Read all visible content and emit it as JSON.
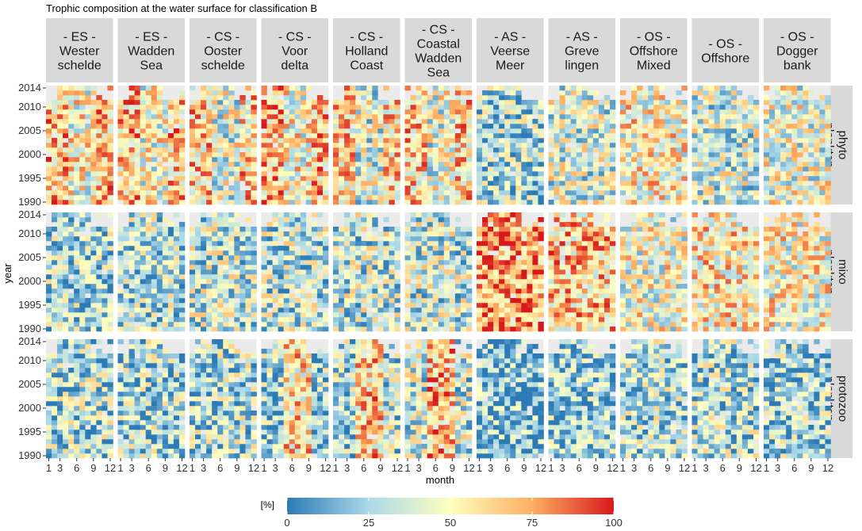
{
  "chart_data": {
    "type": "heatmap",
    "title": "Trophic composition at the water surface for classification B",
    "xlabel": "month",
    "ylabel": "year",
    "x_ticks": [
      1,
      3,
      6,
      9,
      12
    ],
    "x_tick_labels": [
      "1",
      "3",
      "6",
      "9",
      "12"
    ],
    "y_ticks": [
      1990,
      1995,
      2000,
      2005,
      2010,
      2014
    ],
    "y_tick_labels": [
      "1990",
      "1995",
      "2000",
      "2005",
      "2010",
      "2014"
    ],
    "xlim": [
      1,
      12
    ],
    "ylim": [
      1990,
      2014
    ],
    "columns": [
      {
        "line1": "- ES -",
        "line2": "Wester",
        "line3": "schelde"
      },
      {
        "line1": "- ES -",
        "line2": "Wadden",
        "line3": "Sea"
      },
      {
        "line1": "- CS -",
        "line2": "Ooster",
        "line3": "schelde"
      },
      {
        "line1": "- CS -",
        "line2": "Voor",
        "line3": "delta"
      },
      {
        "line1": "- CS -",
        "line2": "Holland",
        "line3": "Coast"
      },
      {
        "line1": "- CS -",
        "line2": "Coastal",
        "line3": "Wadden",
        "line4": "Sea"
      },
      {
        "line1": "- AS -",
        "line2": "Veerse",
        "line3": "Meer"
      },
      {
        "line1": "- AS -",
        "line2": "Greve",
        "line3": "lingen"
      },
      {
        "line1": "- OS -",
        "line2": "Offshore",
        "line3": "Mixed"
      },
      {
        "line1": "- OS -",
        "line2": "Offshore",
        "line3": ""
      },
      {
        "line1": "- OS -",
        "line2": "Dogger",
        "line3": "bank"
      }
    ],
    "rows": [
      {
        "line1": "phyto",
        "line2": "plankton"
      },
      {
        "line1": "mixo",
        "line2": "plankton"
      },
      {
        "line1": "protozoo",
        "line2": "plankton"
      }
    ],
    "approx_mean_percent": [
      [
        62,
        60,
        55,
        62,
        52,
        55,
        28,
        40,
        52,
        38,
        45
      ],
      [
        28,
        30,
        35,
        33,
        35,
        35,
        78,
        65,
        48,
        55,
        50
      ],
      [
        30,
        28,
        30,
        35,
        40,
        45,
        18,
        22,
        30,
        30,
        25
      ]
    ],
    "legend": {
      "title": "[%]",
      "ticks": [
        "0",
        "25",
        "50",
        "75",
        "100"
      ],
      "min": 0,
      "max": 100,
      "stops": [
        "#2c7bb6",
        "#abd9e9",
        "#ffffbf",
        "#fdae61",
        "#d7191c"
      ]
    }
  }
}
